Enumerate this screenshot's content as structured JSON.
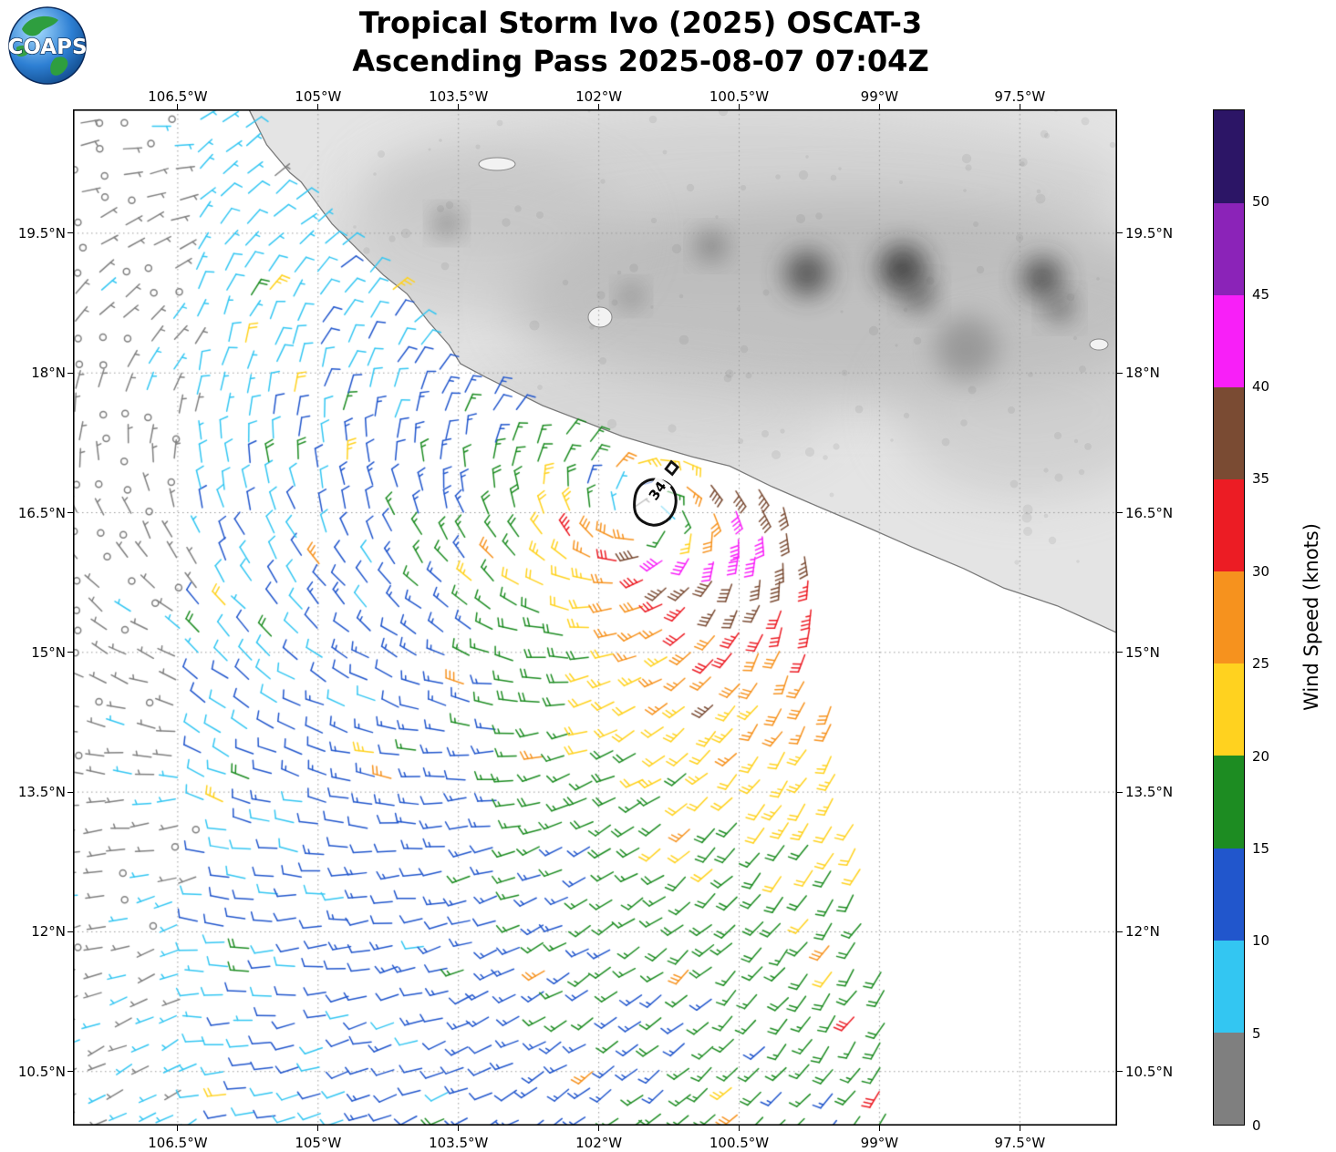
{
  "logo": {
    "text": "COAPS"
  },
  "header": {
    "title": "Tropical Storm Ivo (2025) OSCAT-3",
    "subtitle": "Ascending Pass 2025-08-07 07:04Z"
  },
  "chart_data": {
    "type": "wind_barb_map",
    "storm_name": "Ivo",
    "storm_year": "2025",
    "instrument": "OSCAT-3",
    "pass": "Ascending",
    "pass_time_utc": "2025-08-07 07:04Z",
    "units": "knots",
    "axes": {
      "grid_style": "dotted",
      "lon_range_deg": [
        -107.62,
        -96.46
      ],
      "lat_range_deg": [
        9.92,
        20.83
      ],
      "lon_ticks": [
        {
          "value": -106.5,
          "label": "106.5°W"
        },
        {
          "value": -105.0,
          "label": "105°W"
        },
        {
          "value": -103.5,
          "label": "103.5°W"
        },
        {
          "value": -102.0,
          "label": "102°W"
        },
        {
          "value": -100.5,
          "label": "100.5°W"
        },
        {
          "value": -99.0,
          "label": "99°W"
        },
        {
          "value": -97.5,
          "label": "97.5°W"
        }
      ],
      "lat_ticks": [
        {
          "value": 19.5,
          "label": "19.5°N"
        },
        {
          "value": 18.0,
          "label": "18°N"
        },
        {
          "value": 16.5,
          "label": "16.5°N"
        },
        {
          "value": 15.0,
          "label": "15°N"
        },
        {
          "value": 13.5,
          "label": "13.5°N"
        },
        {
          "value": 12.0,
          "label": "12°N"
        },
        {
          "value": 10.5,
          "label": "10.5°N"
        }
      ]
    },
    "colorbar": {
      "label": "Wind Speed (knots)",
      "tick_values": [
        0,
        5,
        10,
        15,
        20,
        25,
        30,
        35,
        40,
        45,
        50
      ],
      "bins": [
        {
          "range": [
            0,
            5
          ],
          "color": "#7f7f7f"
        },
        {
          "range": [
            5,
            10
          ],
          "color": "#33c6f2"
        },
        {
          "range": [
            10,
            15
          ],
          "color": "#2156cc"
        },
        {
          "range": [
            15,
            20
          ],
          "color": "#1d8c22"
        },
        {
          "range": [
            20,
            25
          ],
          "color": "#ffd21f"
        },
        {
          "range": [
            25,
            30
          ],
          "color": "#f6921e"
        },
        {
          "range": [
            30,
            35
          ],
          "color": "#ec1c24"
        },
        {
          "range": [
            35,
            40
          ],
          "color": "#7a4b33"
        },
        {
          "range": [
            40,
            45
          ],
          "color": "#f81ff8"
        },
        {
          "range": [
            45,
            50
          ],
          "color": "#8b23b8"
        },
        {
          "range": [
            50,
            55
          ],
          "color": "#2c1566"
        }
      ]
    },
    "storm": {
      "center_lon": -101.4,
      "center_lat": 16.5,
      "radii_contour_label": "34",
      "radii_contour_knots": 34
    },
    "wind_field_model": {
      "vmax_knots": 33,
      "rmax_deg": 0.6,
      "decay_exp": 0.45,
      "ellipse_scale_x": 0.6,
      "ellipse_scale_y": 1.25,
      "tilt_deg": -15,
      "inflow_deg": 18,
      "ambient_u": -1.5,
      "ambient_v": 5,
      "grid_step_deg": 0.26,
      "calm_threshold_knots": 2.5,
      "swath_right_edge": {
        "lon_at_10N": -98.7,
        "slope_deg_per_deg_lat": -0.175
      }
    },
    "coastline": [
      [
        -105.75,
        20.85
      ],
      [
        -105.55,
        20.45
      ],
      [
        -105.3,
        20.15
      ],
      [
        -105.18,
        20.05
      ],
      [
        -104.85,
        19.6
      ],
      [
        -104.55,
        19.3
      ],
      [
        -104.3,
        19.05
      ],
      [
        -104.05,
        18.85
      ],
      [
        -103.82,
        18.55
      ],
      [
        -103.6,
        18.3
      ],
      [
        -103.48,
        18.1
      ],
      [
        -103.2,
        17.95
      ],
      [
        -102.94,
        17.82
      ],
      [
        -102.6,
        17.65
      ],
      [
        -102.16,
        17.48
      ],
      [
        -101.75,
        17.32
      ],
      [
        -101.38,
        17.21
      ],
      [
        -101.0,
        17.1
      ],
      [
        -100.6,
        17.0
      ],
      [
        -100.15,
        16.78
      ],
      [
        -99.62,
        16.55
      ],
      [
        -99.1,
        16.33
      ],
      [
        -98.65,
        16.13
      ],
      [
        -98.1,
        15.9
      ],
      [
        -97.67,
        15.69
      ],
      [
        -97.1,
        15.5
      ],
      [
        -96.7,
        15.32
      ],
      [
        -96.44,
        15.2
      ]
    ]
  }
}
